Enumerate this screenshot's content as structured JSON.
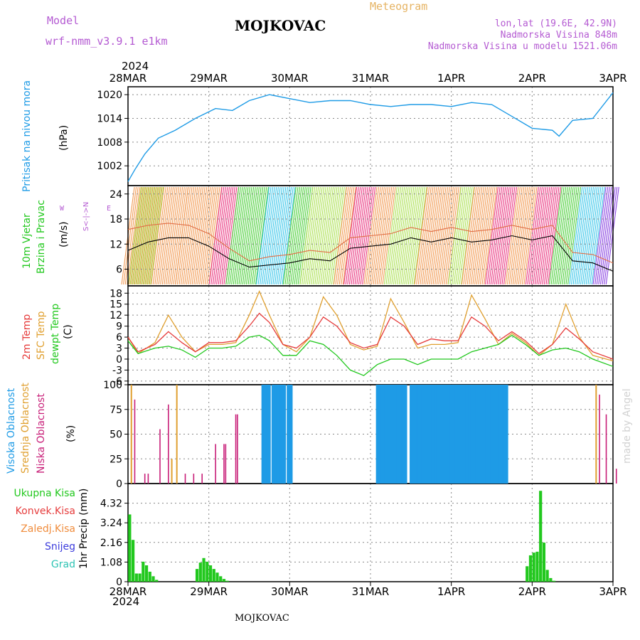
{
  "header": {
    "model_label": "Model",
    "model_name": "wrf-nmm_v3.9.1 e1km",
    "title": "MOJKOVAC",
    "meteogram_label": "Meteogram",
    "lonlat": "lon,lat (19.6E, 42.9N)",
    "elevation": "Nadmorska Visina 848m",
    "model_elevation": "Nadmorska Visina u modelu 1521.06m",
    "footer_station": "MOJKOVAC",
    "credit": "made by Angel"
  },
  "time_axis": {
    "year_top": "2024",
    "year_bottom": "2024",
    "ticks": [
      "28MAR",
      "29MAR",
      "30MAR",
      "31MAR",
      "1APR",
      "2APR",
      "3APR"
    ]
  },
  "panel_labels": {
    "pressure": {
      "title": "Pritisak na nivou mora",
      "unit": "(hPa)"
    },
    "wind": {
      "title_line1": "10m Vjetar",
      "title_line2": "Brzina i Pravac",
      "unit": "(m/s)",
      "compass": "W <-|-> E",
      "compass_ns": "S<-|->N"
    },
    "temp": {
      "t2m": "2m Temp",
      "sfc": "SFC Temp",
      "dewpt": "dewpt Temp",
      "unit": "(C)"
    },
    "cloud": {
      "high": "Visoka Oblacnost",
      "mid": "Srednja Oblacnost",
      "low": "Niska Oblacnost",
      "unit": "(%)"
    },
    "precip": {
      "total": "Ukupna Kisa",
      "conv": "Konvek.Kisa",
      "frz": "Zaledj.Kisa",
      "snow": "Snijeg",
      "grad": "Grad",
      "unit": "1hr Precip (mm)"
    }
  },
  "colors": {
    "pressure": "#1e9be6",
    "t2m": "#e63c3c",
    "sfc": "#e0a030",
    "dewpt": "#22c81e",
    "cloud_high": "#1e9be6",
    "cloud_mid": "#e0a030",
    "cloud_low": "#c81e78",
    "precip_total": "#22c81e",
    "precip_conv": "#e63c3c",
    "precip_frz": "#f08c3c",
    "precip_snow": "#3c3cdc",
    "precip_grad": "#2ec4b4",
    "label_model": "#b45ad2",
    "meteogram": "#e6b464",
    "grid": "#888888"
  },
  "chart_data": [
    {
      "type": "line",
      "panel": "pressure",
      "ylabel": "(hPa)",
      "ylim": [
        997,
        1022
      ],
      "yticks": [
        1002,
        1008,
        1014,
        1020
      ],
      "x_hours": [
        0,
        2,
        5,
        9,
        14,
        20,
        26,
        31,
        36,
        42,
        48,
        54,
        60,
        66,
        72,
        78,
        84,
        90,
        96,
        102,
        108,
        114,
        120,
        126,
        128,
        132,
        138,
        144
      ],
      "series": [
        {
          "values": [
            998,
            1001,
            1005,
            1009,
            1011,
            1014,
            1016.5,
            1016,
            1018.5,
            1020,
            1019,
            1018,
            1018.5,
            1018.5,
            1017.5,
            1017,
            1017.5,
            1017.5,
            1017,
            1018,
            1017.5,
            1014.5,
            1011.5,
            1011,
            1009.5,
            1013.5,
            1014,
            1020.5
          ]
        }
      ]
    },
    {
      "type": "line",
      "panel": "wind",
      "ylabel": "(m/s)",
      "ylim": [
        2,
        26
      ],
      "yticks": [
        6,
        12,
        18,
        24
      ],
      "x_hours": [
        0,
        6,
        12,
        18,
        24,
        30,
        36,
        42,
        48,
        54,
        60,
        66,
        72,
        78,
        84,
        90,
        96,
        102,
        108,
        114,
        120,
        126,
        132,
        138,
        144
      ],
      "series": [
        {
          "values": [
            10.5,
            12.5,
            13.5,
            13.5,
            11.5,
            8.5,
            6.5,
            7,
            7.5,
            8.5,
            8,
            11,
            11.5,
            12,
            13.5,
            12.5,
            13.5,
            12.5,
            13,
            14,
            13,
            14,
            8,
            7.5,
            5.5
          ]
        },
        {
          "values": [
            15.5,
            16.5,
            17,
            16.5,
            14.5,
            11,
            8,
            9,
            9.5,
            10.5,
            10,
            13.5,
            14,
            14.5,
            16,
            15,
            16,
            15,
            15.5,
            16.5,
            15.5,
            16.5,
            10,
            9.5,
            7.5
          ]
        }
      ]
    },
    {
      "type": "line",
      "panel": "temp",
      "ylabel": "(C)",
      "ylim": [
        -7,
        20
      ],
      "yticks": [
        -6,
        -3,
        0,
        3,
        6,
        9,
        12,
        15,
        18
      ],
      "x_hours": [
        0,
        3,
        8,
        12,
        16,
        20,
        24,
        28,
        32,
        36,
        39,
        42,
        46,
        50,
        54,
        58,
        62,
        66,
        70,
        74,
        78,
        82,
        86,
        90,
        94,
        98,
        102,
        106,
        110,
        114,
        118,
        122,
        126,
        130,
        134,
        138,
        144
      ],
      "series": [
        {
          "name": "2m Temp",
          "values": [
            6,
            2,
            4,
            7.5,
            4.5,
            2,
            4.5,
            4.5,
            5,
            9,
            12.5,
            10,
            4,
            3,
            6,
            11.5,
            9,
            4.5,
            3,
            4,
            11.5,
            9,
            4,
            5.5,
            5,
            5,
            11.5,
            9,
            5,
            7.5,
            5,
            1.5,
            4,
            8.5,
            5.5,
            2,
            0
          ]
        },
        {
          "name": "SFC Temp",
          "values": [
            6,
            1.5,
            4.5,
            12,
            6,
            2,
            4,
            4,
            4.5,
            12,
            18.5,
            12,
            4,
            2,
            6,
            17,
            12,
            4,
            2.5,
            3.5,
            16.5,
            10,
            3,
            4,
            4,
            4.5,
            17.5,
            11,
            4,
            7,
            4.5,
            1,
            4,
            15,
            6,
            1,
            -0.5
          ]
        },
        {
          "name": "dewpt Temp",
          "values": [
            5,
            1.5,
            3,
            3.5,
            2.5,
            0.5,
            3,
            3,
            3.5,
            6,
            6.5,
            5,
            1,
            1,
            5,
            4,
            1,
            -3,
            -4.5,
            -1.5,
            0,
            0,
            -1.5,
            0,
            0,
            0,
            2,
            3,
            4,
            6.5,
            4,
            1,
            2.5,
            3,
            2,
            0,
            -2
          ]
        }
      ]
    },
    {
      "type": "bar",
      "panel": "cloud",
      "ylabel": "(%)",
      "ylim": [
        0,
        100
      ],
      "yticks": [
        0,
        25,
        50,
        75,
        100
      ],
      "series": [
        {
          "name": "Visoka Oblacnost",
          "x_hours": [
            40,
            40.5,
            41,
            41.5,
            42,
            43,
            43.5,
            44,
            44.5,
            45,
            45.5,
            46,
            46.5,
            47.5,
            48,
            48.5,
            74,
            74.5,
            75,
            75.5,
            76,
            76.5,
            77,
            77.5,
            78,
            78.5,
            79,
            79.5,
            80,
            80.5,
            81,
            81.5,
            82,
            82.5,
            84,
            84.5,
            85,
            85.5,
            86,
            86.5,
            87,
            87.5,
            88,
            88.5,
            89,
            89.5,
            90,
            90.5,
            91,
            91.5,
            92,
            92.5,
            93,
            93.5,
            94,
            94.5,
            95,
            95.5,
            96,
            96.5,
            97,
            97.5,
            98,
            98.5,
            99,
            99.5,
            100,
            100.5,
            101,
            101.5,
            102,
            102.5,
            103,
            103.5,
            104,
            104.5,
            105,
            105.5,
            106,
            106.5,
            107,
            107.5,
            108,
            108.5,
            109,
            109.5,
            110,
            110.5,
            111,
            111.5,
            112,
            112.5
          ],
          "values": [
            100,
            100,
            100,
            100,
            100,
            100,
            100,
            100,
            100,
            100,
            100,
            100,
            100,
            100,
            100,
            100,
            100,
            100,
            100,
            100,
            100,
            100,
            100,
            100,
            100,
            100,
            100,
            100,
            100,
            100,
            100,
            100,
            100,
            100,
            100,
            100,
            100,
            100,
            100,
            100,
            100,
            100,
            100,
            100,
            100,
            100,
            100,
            100,
            100,
            100,
            100,
            100,
            100,
            100,
            100,
            100,
            100,
            100,
            100,
            100,
            100,
            100,
            100,
            100,
            100,
            100,
            100,
            100,
            100,
            100,
            100,
            100,
            100,
            100,
            100,
            100,
            100,
            100,
            100,
            100,
            100,
            100,
            100,
            100,
            100,
            100,
            100,
            100,
            100,
            100,
            100,
            100
          ]
        },
        {
          "name": "Srednja Oblacnost",
          "x_hours": [
            1,
            13,
            14.5,
            139
          ],
          "values": [
            100,
            25,
            100,
            100
          ]
        },
        {
          "name": "Niska Oblacnost",
          "x_hours": [
            2,
            5,
            6,
            9.5,
            12,
            17,
            19.5,
            22,
            26,
            28.5,
            29,
            32,
            32.5,
            140,
            142,
            145
          ],
          "values": [
            85,
            10,
            10,
            55,
            80,
            10,
            10,
            10,
            40,
            40,
            40,
            70,
            70,
            90,
            70,
            15
          ]
        }
      ]
    },
    {
      "type": "bar",
      "panel": "precip",
      "ylabel": "1hr Precip (mm)",
      "ylim": [
        0,
        5.4
      ],
      "yticks": [
        0,
        1.08,
        2.16,
        3.24,
        4.32
      ],
      "series": [
        {
          "name": "Ukupna Kisa",
          "x_hours": [
            0.5,
            1.5,
            2.5,
            3.5,
            4.5,
            5.5,
            6.5,
            7.5,
            8.5,
            20.5,
            21.5,
            22.5,
            23.5,
            24.5,
            25.5,
            26.5,
            27.5,
            28.5,
            29.5,
            118.5,
            119.5,
            120.5,
            121.5,
            122.5,
            123.5,
            124.5,
            125.5,
            126.5
          ],
          "values": [
            3.7,
            2.3,
            0.45,
            0.45,
            1.1,
            0.9,
            0.55,
            0.3,
            0.1,
            0.7,
            1.05,
            1.3,
            1.1,
            0.9,
            0.7,
            0.5,
            0.3,
            0.15,
            0.05,
            0.85,
            1.45,
            1.6,
            1.65,
            5.0,
            2.15,
            0.65,
            0.2,
            0.05
          ]
        }
      ]
    }
  ]
}
